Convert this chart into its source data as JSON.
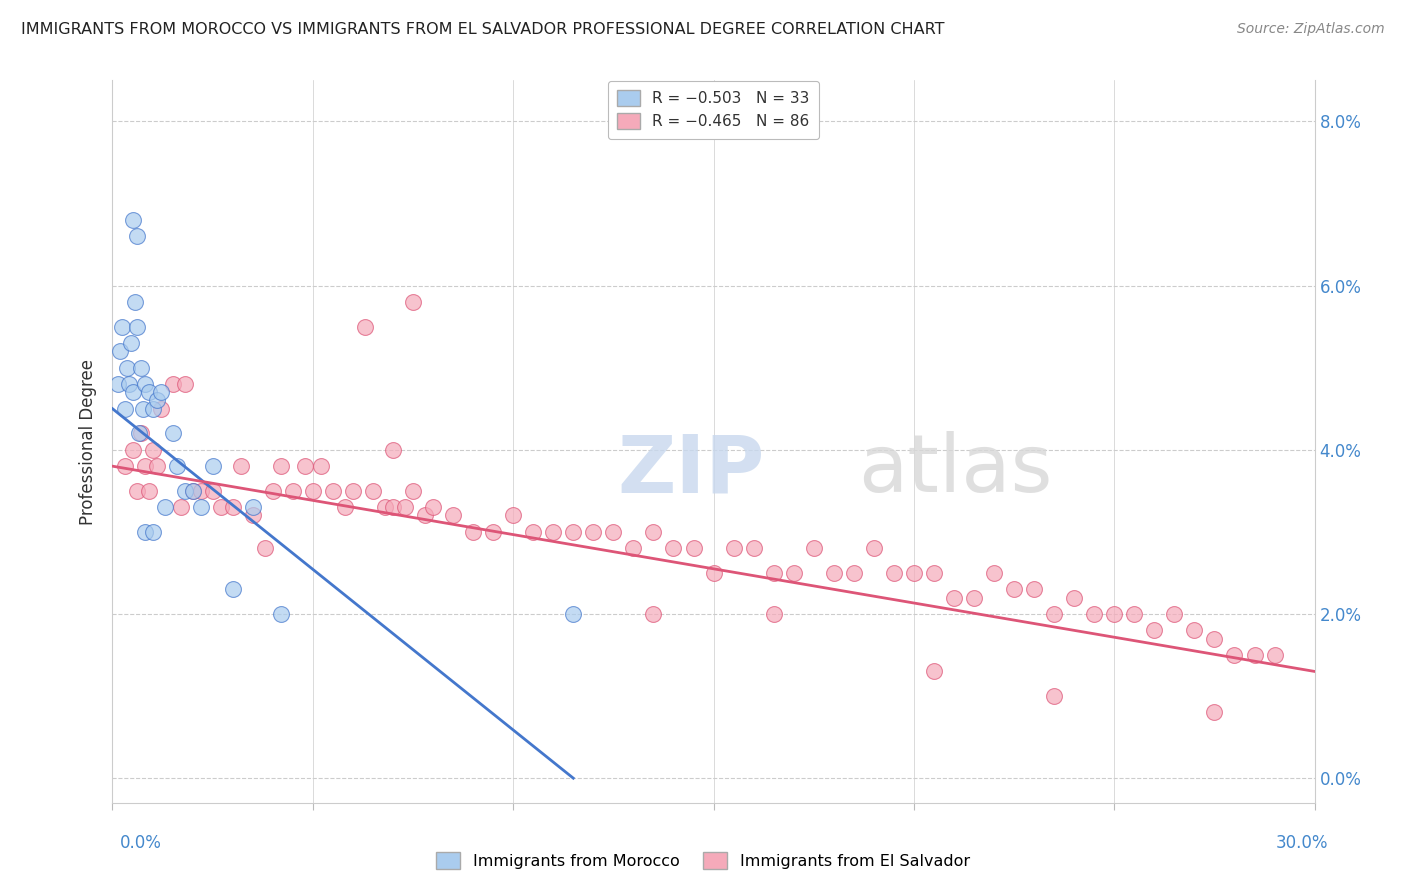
{
  "title": "IMMIGRANTS FROM MOROCCO VS IMMIGRANTS FROM EL SALVADOR PROFESSIONAL DEGREE CORRELATION CHART",
  "source": "Source: ZipAtlas.com",
  "ylabel": "Professional Degree",
  "y_tick_vals": [
    0.0,
    2.0,
    4.0,
    6.0,
    8.0
  ],
  "xlim": [
    0.0,
    30.0
  ],
  "ylim": [
    -0.3,
    8.5
  ],
  "color_morocco": "#aaccee",
  "color_salvador": "#f5aaba",
  "trendline_morocco": "#4477cc",
  "trendline_salvador": "#dd5577",
  "watermark_zip": "ZIP",
  "watermark_atlas": "atlas",
  "morocco_x": [
    0.15,
    0.2,
    0.25,
    0.3,
    0.35,
    0.4,
    0.45,
    0.5,
    0.55,
    0.6,
    0.65,
    0.7,
    0.75,
    0.8,
    0.9,
    1.0,
    1.1,
    1.2,
    1.3,
    1.5,
    1.6,
    1.8,
    2.0,
    2.2,
    2.5,
    3.0,
    3.5,
    4.2,
    0.5,
    0.6,
    0.8,
    1.0,
    11.5
  ],
  "morocco_y": [
    4.8,
    5.2,
    5.5,
    4.5,
    5.0,
    4.8,
    5.3,
    4.7,
    5.8,
    5.5,
    4.2,
    5.0,
    4.5,
    4.8,
    4.7,
    4.5,
    4.6,
    4.7,
    3.3,
    4.2,
    3.8,
    3.5,
    3.5,
    3.3,
    3.8,
    2.3,
    3.3,
    2.0,
    6.8,
    6.6,
    3.0,
    3.0,
    2.0
  ],
  "salvador_x": [
    0.3,
    0.5,
    0.6,
    0.7,
    0.8,
    0.9,
    1.0,
    1.1,
    1.2,
    1.5,
    1.7,
    1.8,
    2.0,
    2.2,
    2.5,
    2.7,
    3.0,
    3.2,
    3.5,
    3.8,
    4.0,
    4.2,
    4.5,
    4.8,
    5.0,
    5.2,
    5.5,
    5.8,
    6.0,
    6.3,
    6.5,
    6.8,
    7.0,
    7.3,
    7.5,
    7.8,
    8.0,
    8.5,
    9.0,
    9.5,
    10.0,
    10.5,
    11.0,
    11.5,
    12.0,
    12.5,
    13.0,
    13.5,
    14.0,
    14.5,
    15.0,
    15.5,
    16.0,
    16.5,
    17.0,
    17.5,
    18.0,
    18.5,
    19.0,
    19.5,
    20.0,
    20.5,
    21.0,
    21.5,
    22.0,
    22.5,
    23.0,
    23.5,
    24.0,
    24.5,
    25.0,
    25.5,
    26.0,
    26.5,
    27.0,
    27.5,
    28.0,
    28.5,
    29.0,
    7.0,
    7.5,
    13.5,
    16.5,
    20.5,
    23.5,
    27.5
  ],
  "salvador_y": [
    3.8,
    4.0,
    3.5,
    4.2,
    3.8,
    3.5,
    4.0,
    3.8,
    4.5,
    4.8,
    3.3,
    4.8,
    3.5,
    3.5,
    3.5,
    3.3,
    3.3,
    3.8,
    3.2,
    2.8,
    3.5,
    3.8,
    3.5,
    3.8,
    3.5,
    3.8,
    3.5,
    3.3,
    3.5,
    5.5,
    3.5,
    3.3,
    3.3,
    3.3,
    5.8,
    3.2,
    3.3,
    3.2,
    3.0,
    3.0,
    3.2,
    3.0,
    3.0,
    3.0,
    3.0,
    3.0,
    2.8,
    3.0,
    2.8,
    2.8,
    2.5,
    2.8,
    2.8,
    2.5,
    2.5,
    2.8,
    2.5,
    2.5,
    2.8,
    2.5,
    2.5,
    2.5,
    2.2,
    2.2,
    2.5,
    2.3,
    2.3,
    2.0,
    2.2,
    2.0,
    2.0,
    2.0,
    1.8,
    2.0,
    1.8,
    1.7,
    1.5,
    1.5,
    1.5,
    4.0,
    3.5,
    2.0,
    2.0,
    1.3,
    1.0,
    0.8
  ],
  "mor_line_x": [
    0.0,
    11.5
  ],
  "mor_line_y": [
    4.5,
    0.0
  ],
  "sal_line_x": [
    0.0,
    30.0
  ],
  "sal_line_y": [
    3.8,
    1.3
  ]
}
